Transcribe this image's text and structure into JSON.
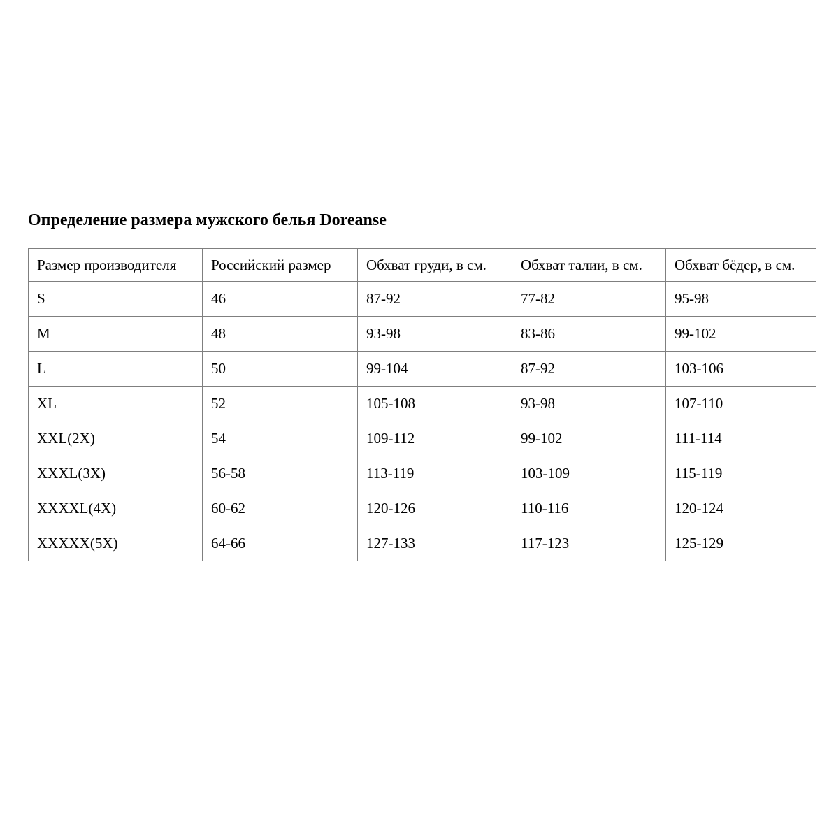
{
  "page": {
    "title": "Определение размера мужского белья Doreanse"
  },
  "table": {
    "border_color": "#7f7f7f",
    "columns": [
      "Размер производителя",
      "Российский размер",
      "Обхват груди, в см.",
      "Обхват талии, в см.",
      "Обхват бёдер, в см."
    ],
    "rows": [
      {
        "manufacturer_size": "S",
        "russian_size": "46",
        "chest": "87-92",
        "waist": "77-82",
        "hips": "95-98"
      },
      {
        "manufacturer_size": "M",
        "russian_size": "48",
        "chest": "93-98",
        "waist": "83-86",
        "hips": "99-102"
      },
      {
        "manufacturer_size": "L",
        "russian_size": "50",
        "chest": "99-104",
        "waist": "87-92",
        "hips": "103-106"
      },
      {
        "manufacturer_size": "XL",
        "russian_size": "52",
        "chest": "105-108",
        "waist": "93-98",
        "hips": "107-110"
      },
      {
        "manufacturer_size": "XXL(2X)",
        "russian_size": "54",
        "chest": "109-112",
        "waist": "99-102",
        "hips": "111-114"
      },
      {
        "manufacturer_size": "XXXL(3X)",
        "russian_size": "56-58",
        "chest": "113-119",
        "waist": "103-109",
        "hips": "115-119"
      },
      {
        "manufacturer_size": "XXXXL(4X)",
        "russian_size": "60-62",
        "chest": "120-126",
        "waist": "110-116",
        "hips": "120-124"
      },
      {
        "manufacturer_size": "XXXXX(5X)",
        "russian_size": "64-66",
        "chest": "127-133",
        "waist": "117-123",
        "hips": "125-129"
      }
    ]
  }
}
